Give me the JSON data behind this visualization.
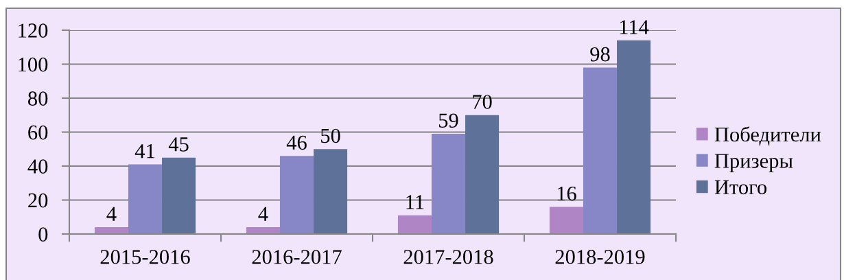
{
  "chart_data": {
    "type": "bar",
    "categories": [
      "2015-2016",
      "2016-2017",
      "2017-2018",
      "2018-2019"
    ],
    "series": [
      {
        "name": "Победители",
        "color": "#b085c6",
        "values": [
          4,
          4,
          11,
          16
        ]
      },
      {
        "name": "Призеры",
        "color": "#8786c6",
        "values": [
          41,
          46,
          59,
          98
        ]
      },
      {
        "name": "Итого",
        "color": "#5e7299",
        "values": [
          45,
          50,
          70,
          114
        ]
      }
    ],
    "ylim": [
      0,
      120
    ],
    "yticks": [
      0,
      20,
      40,
      60,
      80,
      100,
      120
    ],
    "grid": "y",
    "legend": "right",
    "data_labels": true
  }
}
